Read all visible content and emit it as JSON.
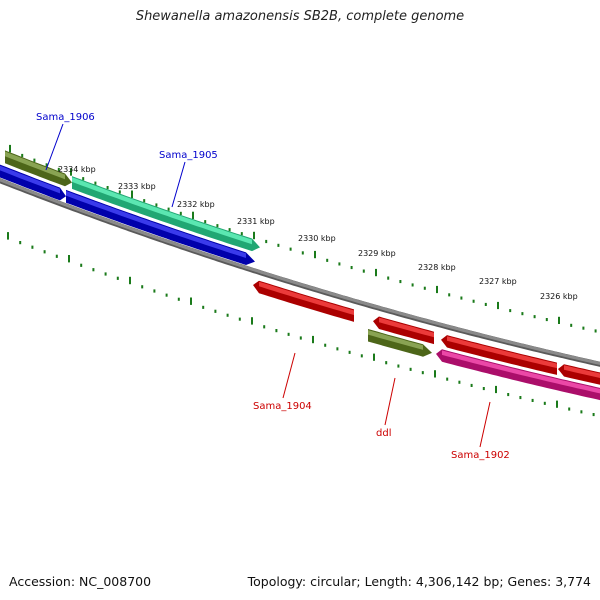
{
  "title": "Shewanella amazonensis SB2B, complete genome",
  "footer": {
    "accession": "Accession: NC_008700",
    "summary": "Topology: circular; Length: 4,306,142 bp; Genes: 3,774"
  },
  "colors": {
    "backbone": "#8a8a8a",
    "tick": "#1a7a1a",
    "blue_gene": "#0000ee",
    "olive_gene": "#6b8e23",
    "teal_gene": "#2ee8a0",
    "red_gene": "#ee0000",
    "pink_gene": "#ee1493",
    "label_forward": "#0000cc",
    "label_reverse": "#cc0000"
  },
  "ruler_labels": [
    "2334 kbp",
    "2333 kbp",
    "2332 kbp",
    "2331 kbp",
    "2330 kbp",
    "2329 kbp",
    "2328 kbp",
    "2327 kbp",
    "2326 kbp"
  ],
  "gene_labels": [
    {
      "text": "Sama_1906",
      "strand": "forward"
    },
    {
      "text": "Sama_1905",
      "strand": "forward"
    },
    {
      "text": "Sama_1904",
      "strand": "reverse"
    },
    {
      "text": "ddl",
      "strand": "reverse"
    },
    {
      "text": "Sama_1902",
      "strand": "reverse"
    }
  ]
}
